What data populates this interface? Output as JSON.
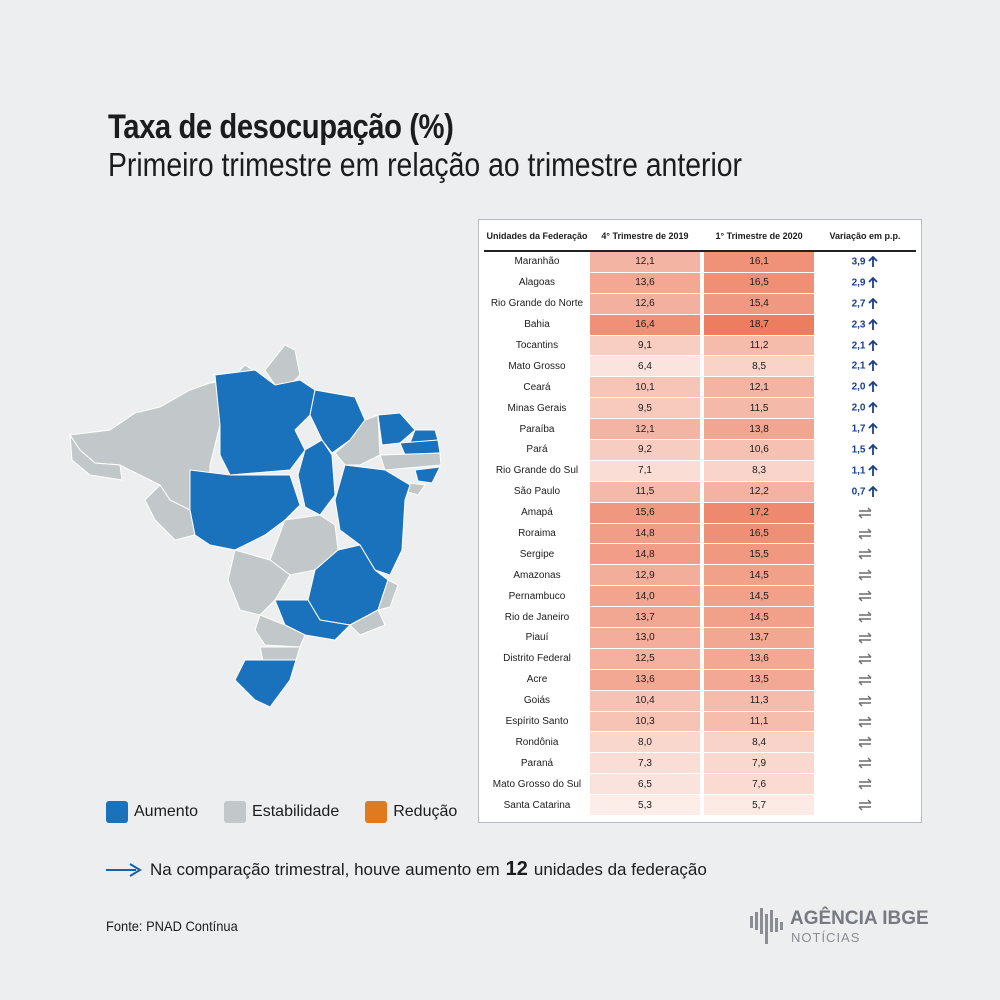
{
  "title": "Taxa de desocupação (%)",
  "subtitle": "Primeiro trimestre em relação ao trimestre anterior",
  "legend": [
    {
      "label": "Aumento",
      "color": "#1a72bd"
    },
    {
      "label": "Estabilidade",
      "color": "#c2c8c9"
    },
    {
      "label": "Redução",
      "color": "#e07a1f"
    }
  ],
  "colors": {
    "increase": "#1a72bd",
    "stable": "#c2c8c9",
    "arrow": "#1a3f8f",
    "stable_arrow": "#6d6d6d"
  },
  "chart_data": {
    "type": "table",
    "columns": [
      "Unidades da Federação",
      "4° Trimestre de 2019",
      "1° Trimestre de 2020",
      "Variação em p.p."
    ],
    "rows": [
      {
        "uf": "Maranhão",
        "q4_2019": "12,1",
        "q1_2020": "16,1",
        "variation": "3,9",
        "trend": "up"
      },
      {
        "uf": "Alagoas",
        "q4_2019": "13,6",
        "q1_2020": "16,5",
        "variation": "2,9",
        "trend": "up"
      },
      {
        "uf": "Rio Grande do Norte",
        "q4_2019": "12,6",
        "q1_2020": "15,4",
        "variation": "2,7",
        "trend": "up"
      },
      {
        "uf": "Bahia",
        "q4_2019": "16,4",
        "q1_2020": "18,7",
        "variation": "2,3",
        "trend": "up"
      },
      {
        "uf": "Tocantins",
        "q4_2019": "9,1",
        "q1_2020": "11,2",
        "variation": "2,1",
        "trend": "up"
      },
      {
        "uf": "Mato Grosso",
        "q4_2019": "6,4",
        "q1_2020": "8,5",
        "variation": "2,1",
        "trend": "up"
      },
      {
        "uf": "Ceará",
        "q4_2019": "10,1",
        "q1_2020": "12,1",
        "variation": "2,0",
        "trend": "up"
      },
      {
        "uf": "Minas Gerais",
        "q4_2019": "9,5",
        "q1_2020": "11,5",
        "variation": "2,0",
        "trend": "up"
      },
      {
        "uf": "Paraíba",
        "q4_2019": "12,1",
        "q1_2020": "13,8",
        "variation": "1,7",
        "trend": "up"
      },
      {
        "uf": "Pará",
        "q4_2019": "9,2",
        "q1_2020": "10,6",
        "variation": "1,5",
        "trend": "up"
      },
      {
        "uf": "Rio Grande do Sul",
        "q4_2019": "7,1",
        "q1_2020": "8,3",
        "variation": "1,1",
        "trend": "up"
      },
      {
        "uf": "São Paulo",
        "q4_2019": "11,5",
        "q1_2020": "12,2",
        "variation": "0,7",
        "trend": "up"
      },
      {
        "uf": "Amapá",
        "q4_2019": "15,6",
        "q1_2020": "17,2",
        "variation": "",
        "trend": "stable"
      },
      {
        "uf": "Roraima",
        "q4_2019": "14,8",
        "q1_2020": "16,5",
        "variation": "",
        "trend": "stable"
      },
      {
        "uf": "Sergipe",
        "q4_2019": "14,8",
        "q1_2020": "15,5",
        "variation": "",
        "trend": "stable"
      },
      {
        "uf": "Amazonas",
        "q4_2019": "12,9",
        "q1_2020": "14,5",
        "variation": "",
        "trend": "stable"
      },
      {
        "uf": "Pernambuco",
        "q4_2019": "14,0",
        "q1_2020": "14,5",
        "variation": "",
        "trend": "stable"
      },
      {
        "uf": "Rio de Janeiro",
        "q4_2019": "13,7",
        "q1_2020": "14,5",
        "variation": "",
        "trend": "stable"
      },
      {
        "uf": "Piauí",
        "q4_2019": "13,0",
        "q1_2020": "13,7",
        "variation": "",
        "trend": "stable"
      },
      {
        "uf": "Distrito Federal",
        "q4_2019": "12,5",
        "q1_2020": "13,6",
        "variation": "",
        "trend": "stable"
      },
      {
        "uf": "Acre",
        "q4_2019": "13,6",
        "q1_2020": "13,5",
        "variation": "",
        "trend": "stable"
      },
      {
        "uf": "Goiás",
        "q4_2019": "10,4",
        "q1_2020": "11,3",
        "variation": "",
        "trend": "stable"
      },
      {
        "uf": "Espírito Santo",
        "q4_2019": "10,3",
        "q1_2020": "11,1",
        "variation": "",
        "trend": "stable"
      },
      {
        "uf": "Rondônia",
        "q4_2019": "8,0",
        "q1_2020": "8,4",
        "variation": "",
        "trend": "stable"
      },
      {
        "uf": "Paraná",
        "q4_2019": "7,3",
        "q1_2020": "7,9",
        "variation": "",
        "trend": "stable"
      },
      {
        "uf": "Mato Grosso do Sul",
        "q4_2019": "6,5",
        "q1_2020": "7,6",
        "variation": "",
        "trend": "stable"
      },
      {
        "uf": "Santa Catarina",
        "q4_2019": "5,3",
        "q1_2020": "5,7",
        "variation": "",
        "trend": "stable"
      }
    ]
  },
  "footnote": {
    "before": "Na comparação trimestral, houve aumento em",
    "count": "12",
    "after": "unidades da federação"
  },
  "source": "Fonte: PNAD Contínua",
  "logo": {
    "brand": "AGÊNCIA IBGE",
    "sub": "NOTÍCIAS"
  }
}
